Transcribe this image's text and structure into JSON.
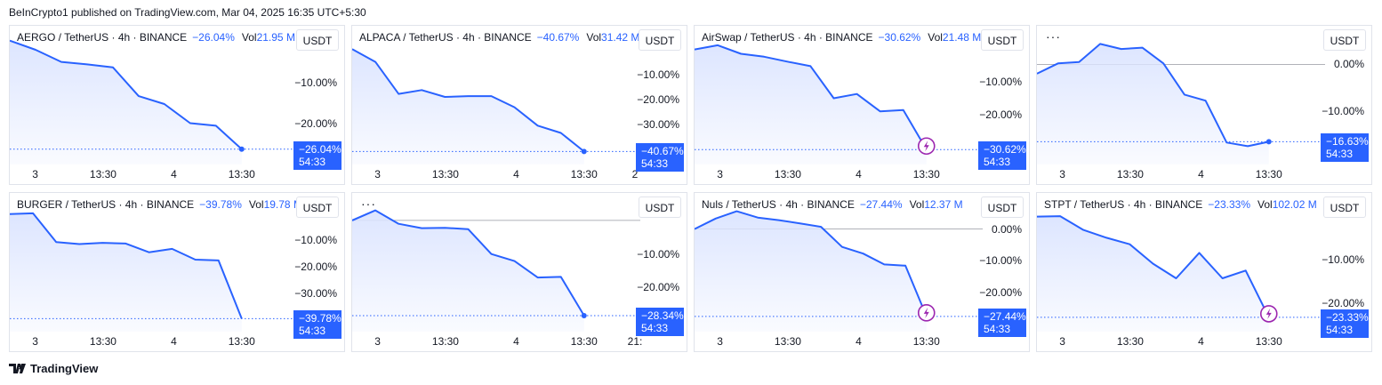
{
  "header": {
    "published": "BeInCrypto1 published on TradingView.com, Mar 04, 2025 16:35 UTC+5:30"
  },
  "footer": {
    "brand": "TradingView"
  },
  "style": {
    "line_color": "#2962ff",
    "fill_color": "#dbe4ff",
    "lightning_color": "#9c27b0",
    "grid_line": "#9598a1"
  },
  "chart_data": [
    {
      "type": "area",
      "title": "AERGO / TetherUS · 4h · BINANCE",
      "change": "−26.04%",
      "vol_label": "Vol",
      "vol": "21.95 M",
      "currency_button": "USDT",
      "y": [
        0,
        -2.2,
        -5.1,
        -5.7,
        -6.4,
        -13.3,
        -15.2,
        -19.8,
        -20.4,
        -26.04
      ],
      "ylim": [
        -28,
        1
      ],
      "y_ticks": [
        -10,
        -20
      ],
      "y_tick_labels": [
        "−10.00%",
        "−20.00%"
      ],
      "zero_line": false,
      "x_tick_labels": [
        "3",
        "13:30",
        "4",
        "13:30"
      ],
      "last_value": "−26.04%",
      "countdown": "54:33",
      "marker": "dot"
    },
    {
      "type": "area",
      "title": "ALPACA / TetherUS · 4h · BINANCE",
      "change": "−40.67%",
      "vol_label": "Vol",
      "vol": "31.42 M",
      "currency_button": "USDT",
      "y": [
        0,
        -5.1,
        -17.8,
        -16.3,
        -19.0,
        -18.7,
        -18.7,
        -23.1,
        -30.4,
        -33.3,
        -40.67
      ],
      "ylim": [
        -43,
        5
      ],
      "y_ticks": [
        -10,
        -20,
        -30
      ],
      "y_tick_labels": [
        "−10.00%",
        "−20.00%",
        "−30.00%"
      ],
      "zero_line": false,
      "x_tick_labels": [
        "3",
        "13:30",
        "4",
        "13:30",
        "2"
      ],
      "last_value": "−40.67%",
      "countdown": "54:33",
      "marker": "dot"
    },
    {
      "type": "area",
      "title": "AirSwap / TetherUS · 4h · BINANCE",
      "change": "−30.62%",
      "vol_label": "Vol",
      "vol": "21.48 M",
      "currency_button": "USDT",
      "y": [
        0,
        1.3,
        -1.3,
        -2.2,
        -3.7,
        -5.1,
        -14.9,
        -13.6,
        -18.9,
        -18.5,
        -30.62
      ],
      "ylim": [
        -33,
        4
      ],
      "y_ticks": [
        -10,
        -20
      ],
      "y_tick_labels": [
        "−10.00%",
        "−20.00%"
      ],
      "zero_line": false,
      "x_tick_labels": [
        "3",
        "13:30",
        "4",
        "13:30"
      ],
      "last_value": "−30.62%",
      "countdown": "54:33",
      "marker": "lightning"
    },
    {
      "type": "area",
      "title": "",
      "dots": "···",
      "change": "",
      "vol_label": "",
      "vol": "",
      "currency_button": "USDT",
      "y": [
        -2.0,
        0.2,
        0.5,
        4.4,
        3.3,
        3.6,
        0.2,
        -6.5,
        -7.8,
        -16.8,
        -17.6,
        -16.63
      ],
      "ylim": [
        -20,
        6
      ],
      "y_ticks": [
        0,
        -10
      ],
      "y_tick_labels": [
        "0.00%",
        "−10.00%"
      ],
      "zero_line": true,
      "x_tick_labels": [
        "3",
        "13:30",
        "4",
        "13:30"
      ],
      "last_value": "−16.63%",
      "countdown": "54:33",
      "marker": "dot"
    },
    {
      "type": "area",
      "title": "BURGER / TetherUS · 4h · BINANCE",
      "change": "−39.78%",
      "vol_label": "Vol",
      "vol": "19.78 M",
      "currency_button": "USDT",
      "y": [
        0,
        0.3,
        -10.6,
        -11.4,
        -10.9,
        -11.2,
        -14.5,
        -13.2,
        -17.3,
        -17.6,
        -39.78
      ],
      "ylim": [
        -42,
        4
      ],
      "y_ticks": [
        -10,
        -20,
        -30
      ],
      "y_tick_labels": [
        "−10.00%",
        "−20.00%",
        "−30.00%"
      ],
      "zero_line": false,
      "x_tick_labels": [
        "3",
        "13:30",
        "4",
        "13:30"
      ],
      "last_value": "−39.78%",
      "countdown": "54:33",
      "marker": "none"
    },
    {
      "type": "area",
      "title": "",
      "dots": "···",
      "change": "",
      "vol_label": "",
      "vol": "",
      "currency_button": "USDT",
      "y": [
        0,
        3.0,
        -1.0,
        -2.3,
        -2.2,
        -2.6,
        -10.0,
        -12.1,
        -17.0,
        -16.8,
        -28.34
      ],
      "ylim": [
        -31,
        5
      ],
      "y_ticks": [
        -10,
        -20
      ],
      "y_tick_labels": [
        "−10.00%",
        "−20.00%"
      ],
      "zero_line": true,
      "x_tick_labels": [
        "3",
        "13:30",
        "4",
        "13:30",
        "21:"
      ],
      "last_value": "−28.34%",
      "countdown": "54:33",
      "marker": "dot"
    },
    {
      "type": "area",
      "title": "Nuls / TetherUS · 4h · BINANCE",
      "change": "−27.44%",
      "vol_label": "Vol",
      "vol": "12.37 M",
      "currency_button": "USDT",
      "y": [
        0,
        3.3,
        5.6,
        3.6,
        2.8,
        1.8,
        0.7,
        -5.6,
        -7.7,
        -11.1,
        -11.5,
        -27.44
      ],
      "ylim": [
        -30,
        8
      ],
      "y_ticks": [
        0,
        -10,
        -20
      ],
      "y_tick_labels": [
        "0.00%",
        "−10.00%",
        "−20.00%"
      ],
      "zero_line": true,
      "x_tick_labels": [
        "3",
        "13:30",
        "4",
        "13:30"
      ],
      "last_value": "−27.44%",
      "countdown": "54:33",
      "marker": "lightning"
    },
    {
      "type": "area",
      "title": "STPT / TetherUS · 4h · BINANCE",
      "change": "−23.33%",
      "vol_label": "Vol",
      "vol": "102.02 M",
      "currency_button": "USDT",
      "y": [
        0,
        0.1,
        -3.1,
        -4.9,
        -6.4,
        -10.9,
        -14.3,
        -8.4,
        -14.3,
        -12.5,
        -23.33
      ],
      "ylim": [
        -25,
        3
      ],
      "y_ticks": [
        -10,
        -20
      ],
      "y_tick_labels": [
        "−10.00%",
        "−20.00%"
      ],
      "zero_line": false,
      "x_tick_labels": [
        "3",
        "13:30",
        "4",
        "13:30"
      ],
      "last_value": "−23.33%",
      "countdown": "54:33",
      "marker": "lightning"
    }
  ]
}
